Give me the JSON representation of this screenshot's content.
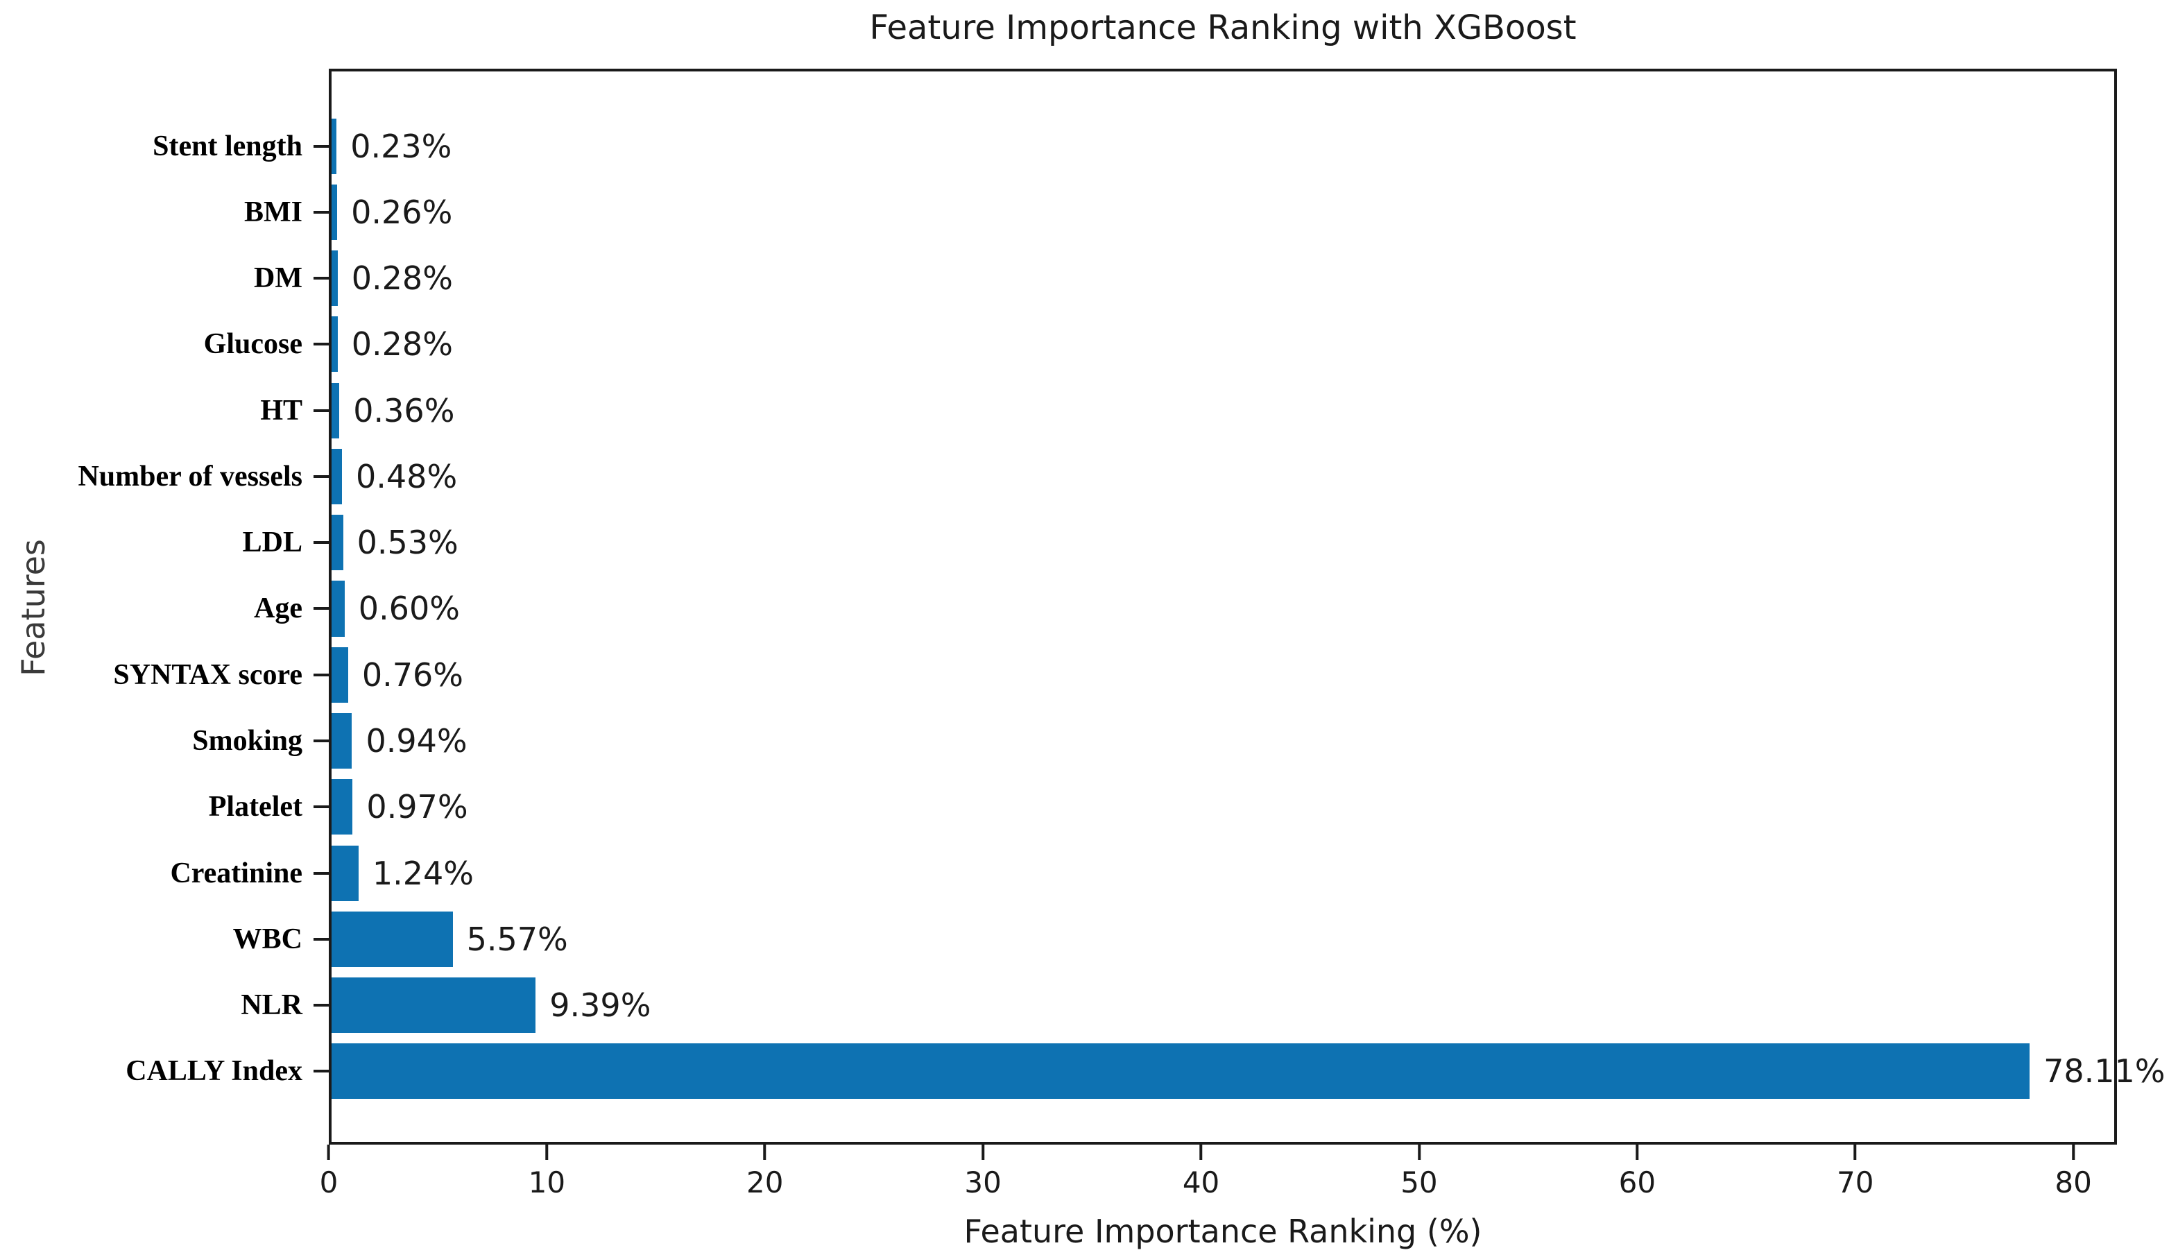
{
  "chart_data": {
    "type": "bar",
    "orientation": "horizontal",
    "title": "Feature Importance Ranking with XGBoost",
    "xlabel": "Feature Importance Ranking (%)",
    "ylabel": "Features",
    "categories": [
      "Stent length",
      "BMI",
      "DM",
      "Glucose",
      "HT",
      "Number of vessels",
      "LDL",
      "Age",
      "SYNTAX score",
      "Smoking",
      "Platelet",
      "Creatinine",
      "WBC",
      "NLR",
      "CALLY Index"
    ],
    "values": [
      0.23,
      0.26,
      0.28,
      0.28,
      0.36,
      0.48,
      0.53,
      0.6,
      0.76,
      0.94,
      0.97,
      1.24,
      5.57,
      9.39,
      78.11
    ],
    "value_labels": [
      "0.23%",
      "0.26%",
      "0.28%",
      "0.28%",
      "0.36%",
      "0.48%",
      "0.53%",
      "0.60%",
      "0.76%",
      "0.94%",
      "0.97%",
      "1.24%",
      "5.57%",
      "9.39%",
      "78.11%"
    ],
    "x_ticks": [
      "0",
      "10",
      "20",
      "30",
      "40",
      "50",
      "60",
      "70",
      "80"
    ],
    "xlim": [
      0,
      82
    ],
    "bar_color": "#0e72b2",
    "grid": false,
    "legend": null
  }
}
